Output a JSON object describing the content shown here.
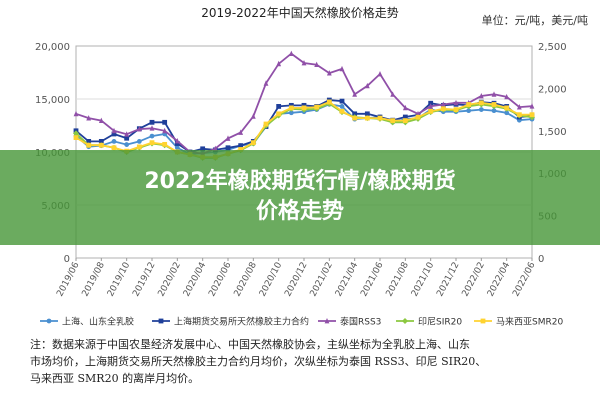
{
  "banner": {
    "title_line1": "2022年橡胶期货行情/橡胶期货",
    "title_line2": "价格走势"
  },
  "note": {
    "line1": "注：数据来源于中国农垦经济发展中心、中国天然橡胶协会，主纵坐标为全乳胶上海、山东",
    "line2": "市场均价，上海期货交易所天然橡胶主力合约月均价，次纵坐标为泰国 RSS3、印尼 SIR20、",
    "line3": "马来西亚 SMR20 的离岸月均价。"
  },
  "chart_data": {
    "type": "line",
    "title": "2019-2022年中国天然橡胶价格走势",
    "unit_label": "单位：元/吨，美元/吨",
    "x": [
      "2019/06",
      "2019/07",
      "2019/08",
      "2019/09",
      "2019/10",
      "2019/11",
      "2019/12",
      "2020/01",
      "2020/02",
      "2020/03",
      "2020/04",
      "2020/05",
      "2020/06",
      "2020/07",
      "2020/08",
      "2020/09",
      "2020/10",
      "2020/11",
      "2020/12",
      "2021/01",
      "2021/02",
      "2021/03",
      "2021/04",
      "2021/05",
      "2021/06",
      "2021/07",
      "2021/08",
      "2021/09",
      "2021/10",
      "2021/11",
      "2021/12",
      "2022/01",
      "2022/02",
      "2022/03",
      "2022/04",
      "2022/05",
      "2022/06"
    ],
    "x_ticks": [
      "2019/06",
      "2019/08",
      "2019/10",
      "2019/12",
      "2020/02",
      "2020/04",
      "2020/06",
      "2020/08",
      "2020/10",
      "2020/12",
      "2021/02",
      "2021/04",
      "2021/06",
      "2021/08",
      "2021/10",
      "2021/12",
      "2022/02",
      "2022/04",
      "2022/06"
    ],
    "y_left": {
      "ylim": [
        0,
        20000
      ],
      "ticks": [
        0,
        5000,
        10000,
        15000,
        20000
      ],
      "tick_labels": [
        "0",
        "5,000",
        "10,000",
        "15,000",
        "20,000"
      ]
    },
    "y_right": {
      "ylim": [
        0,
        2500
      ],
      "ticks": [
        0,
        500,
        1000,
        1500,
        2000,
        2500
      ],
      "tick_labels": [
        "0",
        "500",
        "1,000",
        "1,500",
        "2,000",
        "2,500"
      ]
    },
    "grid": true,
    "legend_position": "bottom",
    "series": [
      {
        "name": "上海、山东全乳胶",
        "axis": "left",
        "color": "#4a8fd0",
        "marker": "circle",
        "values": [
          11500,
          10500,
          10600,
          11000,
          10700,
          11000,
          11500,
          11700,
          10400,
          9800,
          9900,
          10000,
          10200,
          10600,
          10800,
          12400,
          13600,
          13700,
          13800,
          14000,
          14500,
          14300,
          13100,
          13200,
          13300,
          12800,
          13100,
          13200,
          14000,
          13800,
          13800,
          13900,
          14000,
          13900,
          13700,
          13000,
          13100
        ]
      },
      {
        "name": "上海期货交易所天然橡胶主力合约",
        "axis": "left",
        "color": "#1f3f9a",
        "marker": "square",
        "values": [
          12000,
          11000,
          11000,
          11700,
          11300,
          12200,
          12800,
          12800,
          10800,
          10000,
          10300,
          10200,
          10400,
          10600,
          11000,
          12400,
          14300,
          14400,
          14400,
          14300,
          14900,
          14800,
          13600,
          13600,
          13300,
          13000,
          13300,
          13500,
          14600,
          14400,
          14500,
          14400,
          14700,
          14600,
          14300,
          13300,
          13400
        ]
      },
      {
        "name": "泰国RSS3",
        "axis": "right",
        "color": "#9050a8",
        "marker": "triangle",
        "values": [
          1700,
          1650,
          1620,
          1500,
          1460,
          1520,
          1530,
          1500,
          1380,
          1250,
          1230,
          1290,
          1410,
          1480,
          1670,
          2060,
          2290,
          2410,
          2300,
          2280,
          2180,
          2230,
          1930,
          2030,
          2170,
          1930,
          1770,
          1700,
          1790,
          1810,
          1830,
          1830,
          1910,
          1930,
          1900,
          1780,
          1790
        ]
      },
      {
        "name": "印尼SIR20",
        "axis": "right",
        "color": "#8cc840",
        "marker": "diamond",
        "values": [
          1470,
          1330,
          1330,
          1300,
          1250,
          1300,
          1350,
          1330,
          1250,
          1220,
          1180,
          1180,
          1230,
          1270,
          1350,
          1560,
          1680,
          1760,
          1750,
          1760,
          1820,
          1720,
          1660,
          1650,
          1640,
          1600,
          1600,
          1640,
          1720,
          1750,
          1740,
          1790,
          1810,
          1790,
          1760,
          1680,
          1660
        ]
      },
      {
        "name": "马来西亚SMR20",
        "axis": "right",
        "color": "#ffd330",
        "marker": "square",
        "values": [
          1420,
          1330,
          1330,
          1300,
          1260,
          1310,
          1360,
          1340,
          1250,
          1220,
          1190,
          1190,
          1230,
          1280,
          1360,
          1580,
          1700,
          1770,
          1770,
          1780,
          1840,
          1730,
          1650,
          1650,
          1650,
          1620,
          1620,
          1660,
          1730,
          1760,
          1750,
          1810,
          1830,
          1810,
          1770,
          1690,
          1690
        ]
      }
    ]
  }
}
